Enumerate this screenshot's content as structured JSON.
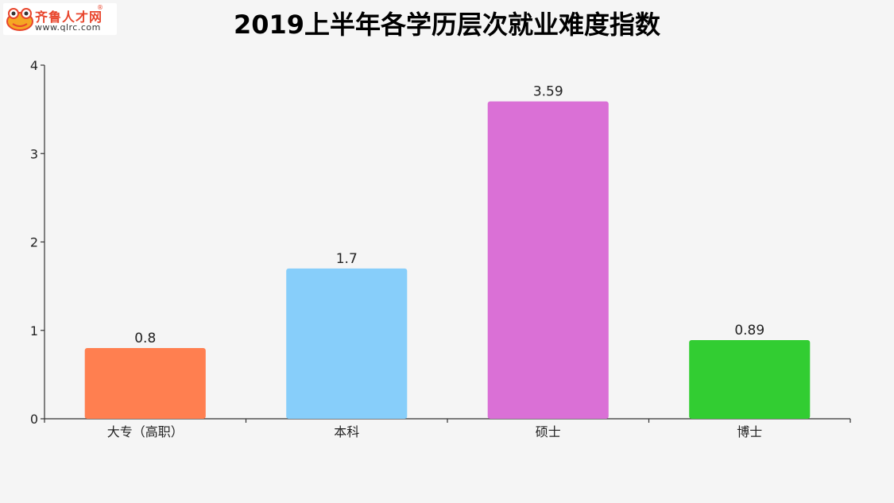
{
  "logo": {
    "brand": "齐鲁人才网",
    "registered": "®",
    "url": "www.qlrc.com"
  },
  "chart_data": {
    "type": "bar",
    "title": "2019上半年各学历层次就业难度指数",
    "categories": [
      "大专（高职）",
      "本科",
      "硕士",
      "博士"
    ],
    "values": [
      0.8,
      1.7,
      3.59,
      0.89
    ],
    "value_labels": [
      "0.8",
      "1.7",
      "3.59",
      "0.89"
    ],
    "colors": [
      "#ff7f50",
      "#87cefa",
      "#da70d6",
      "#32cd32"
    ],
    "ylim": [
      0,
      4
    ],
    "yticks": [
      0,
      1,
      2,
      3,
      4
    ],
    "xlabel": "",
    "ylabel": "",
    "grid": false,
    "legend": "none"
  }
}
